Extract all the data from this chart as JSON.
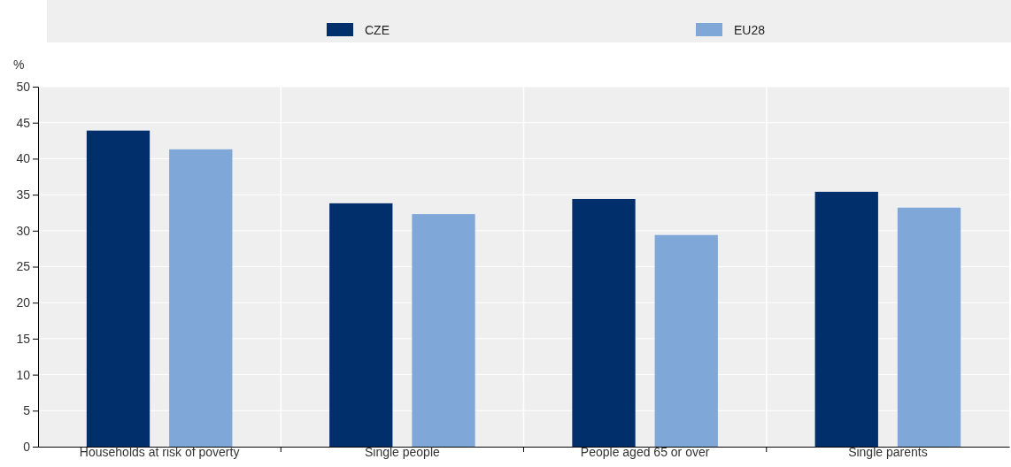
{
  "chart_data": {
    "type": "bar",
    "ylabel": "%",
    "categories": [
      "Households at risk of poverty",
      "Single people",
      "People aged 65 or over",
      "Single parents"
    ],
    "series": [
      {
        "name": "CZE",
        "color": "#002f6c",
        "values": [
          43.9,
          33.8,
          34.4,
          35.4
        ]
      },
      {
        "name": "EU28",
        "color": "#7fa8d9",
        "values": [
          41.3,
          32.3,
          29.4,
          33.2
        ]
      }
    ],
    "ylim": [
      0,
      50
    ],
    "yticks": [
      0,
      5,
      10,
      15,
      20,
      25,
      30,
      35,
      40,
      45,
      50
    ],
    "grid": true,
    "legend": "top"
  }
}
